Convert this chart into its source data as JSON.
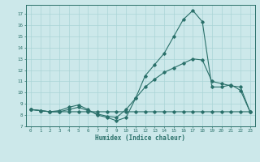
{
  "xlabel": "Humidex (Indice chaleur)",
  "bg_color": "#cce8ea",
  "grid_color": "#aad4d6",
  "line_color": "#2a706a",
  "xlim": [
    -0.5,
    23.5
  ],
  "ylim": [
    7,
    17.8
  ],
  "xticks": [
    0,
    1,
    2,
    3,
    4,
    5,
    6,
    7,
    8,
    9,
    10,
    11,
    12,
    13,
    14,
    15,
    16,
    17,
    18,
    19,
    20,
    21,
    22,
    23
  ],
  "yticks": [
    7,
    8,
    9,
    10,
    11,
    12,
    13,
    14,
    15,
    16,
    17
  ],
  "line1_x": [
    0,
    1,
    2,
    3,
    4,
    5,
    6,
    7,
    8,
    9,
    10,
    11,
    12,
    13,
    14,
    15,
    16,
    17,
    18,
    19,
    20,
    21,
    22,
    23
  ],
  "line1_y": [
    8.5,
    8.4,
    8.3,
    8.3,
    8.3,
    8.3,
    8.3,
    8.3,
    8.3,
    8.3,
    8.3,
    8.3,
    8.3,
    8.3,
    8.3,
    8.3,
    8.3,
    8.3,
    8.3,
    8.3,
    8.3,
    8.3,
    8.3,
    8.3
  ],
  "line2_x": [
    0,
    1,
    2,
    3,
    4,
    5,
    6,
    7,
    8,
    9,
    10,
    11,
    12,
    13,
    14,
    15,
    16,
    17,
    18,
    19,
    20,
    21,
    22,
    23
  ],
  "line2_y": [
    8.5,
    8.4,
    8.3,
    8.4,
    8.7,
    8.9,
    8.5,
    8.0,
    7.8,
    7.5,
    7.8,
    9.5,
    11.5,
    12.5,
    13.5,
    15.0,
    16.5,
    17.3,
    16.3,
    10.5,
    10.5,
    10.7,
    10.2,
    8.3
  ],
  "line3_x": [
    0,
    1,
    2,
    3,
    4,
    5,
    6,
    7,
    8,
    9,
    10,
    11,
    12,
    13,
    14,
    15,
    16,
    17,
    18,
    19,
    20,
    21,
    22,
    23
  ],
  "line3_y": [
    8.5,
    8.4,
    8.3,
    8.3,
    8.5,
    8.7,
    8.4,
    8.1,
    7.9,
    7.8,
    8.5,
    9.5,
    10.5,
    11.2,
    11.8,
    12.2,
    12.6,
    13.0,
    12.9,
    11.0,
    10.8,
    10.6,
    10.5,
    8.3
  ]
}
